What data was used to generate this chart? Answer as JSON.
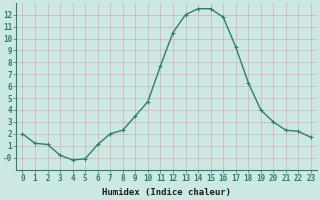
{
  "x": [
    0,
    1,
    2,
    3,
    4,
    5,
    6,
    7,
    8,
    9,
    10,
    11,
    12,
    13,
    14,
    15,
    16,
    17,
    18,
    19,
    20,
    21,
    22,
    23
  ],
  "y": [
    2.0,
    1.2,
    1.1,
    0.2,
    -0.2,
    -0.1,
    1.1,
    2.0,
    2.3,
    3.5,
    4.7,
    7.7,
    10.5,
    12.0,
    12.5,
    12.5,
    11.8,
    9.3,
    6.3,
    4.0,
    3.0,
    2.3,
    2.2,
    1.7
  ],
  "xlabel": "Humidex (Indice chaleur)",
  "line_color": "#2e7d6e",
  "bg_color": "#cce8e4",
  "grid_color": "#d9a0a0",
  "ylim": [
    -1,
    13
  ],
  "xlim": [
    -0.5,
    23.5
  ],
  "ytick_labels": [
    "",
    "1",
    "2",
    "3",
    "4",
    "5",
    "6",
    "7",
    "8",
    "9",
    "10",
    "11",
    "12"
  ],
  "ytick_vals": [
    -0.0,
    1,
    2,
    3,
    4,
    5,
    6,
    7,
    8,
    9,
    10,
    11,
    12
  ],
  "xtick_labels": [
    "0",
    "1",
    "2",
    "3",
    "4",
    "5",
    "6",
    "7",
    "8",
    "9",
    "10",
    "11",
    "12",
    "13",
    "14",
    "15",
    "16",
    "17",
    "18",
    "19",
    "20",
    "21",
    "22",
    "23"
  ],
  "xtick_vals": [
    0,
    1,
    2,
    3,
    4,
    5,
    6,
    7,
    8,
    9,
    10,
    11,
    12,
    13,
    14,
    15,
    16,
    17,
    18,
    19,
    20,
    21,
    22,
    23
  ],
  "xlabel_fontsize": 6.5,
  "tick_fontsize": 5.5,
  "marker": "+",
  "linewidth": 1.0,
  "markersize": 3.5,
  "spine_color": "#2e7d6e"
}
